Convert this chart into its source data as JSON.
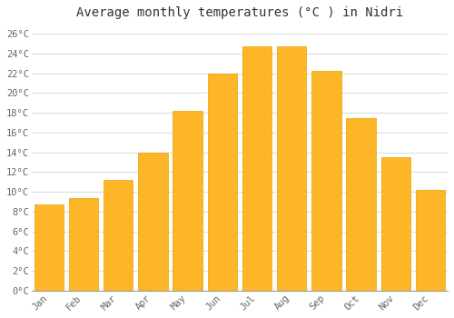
{
  "title": "Average monthly temperatures (°C ) in Nidri",
  "months": [
    "Jan",
    "Feb",
    "Mar",
    "Apr",
    "May",
    "Jun",
    "Jul",
    "Aug",
    "Sep",
    "Oct",
    "Nov",
    "Dec"
  ],
  "values": [
    8.7,
    9.4,
    11.2,
    14.0,
    18.2,
    22.0,
    24.7,
    24.7,
    22.2,
    17.5,
    13.5,
    10.2
  ],
  "bar_color": "#FDB627",
  "bar_edge_color": "#E8A000",
  "background_color": "#FFFFFF",
  "grid_color": "#DDDDDD",
  "ylim": [
    0,
    27
  ],
  "yticks": [
    0,
    2,
    4,
    6,
    8,
    10,
    12,
    14,
    16,
    18,
    20,
    22,
    24,
    26
  ],
  "ytick_labels": [
    "0°C",
    "2°C",
    "4°C",
    "6°C",
    "8°C",
    "10°C",
    "12°C",
    "14°C",
    "16°C",
    "18°C",
    "20°C",
    "22°C",
    "24°C",
    "26°C"
  ],
  "title_fontsize": 10,
  "tick_fontsize": 7.5,
  "title_color": "#333333",
  "tick_color": "#666666",
  "font_family": "monospace",
  "bar_width": 0.85
}
